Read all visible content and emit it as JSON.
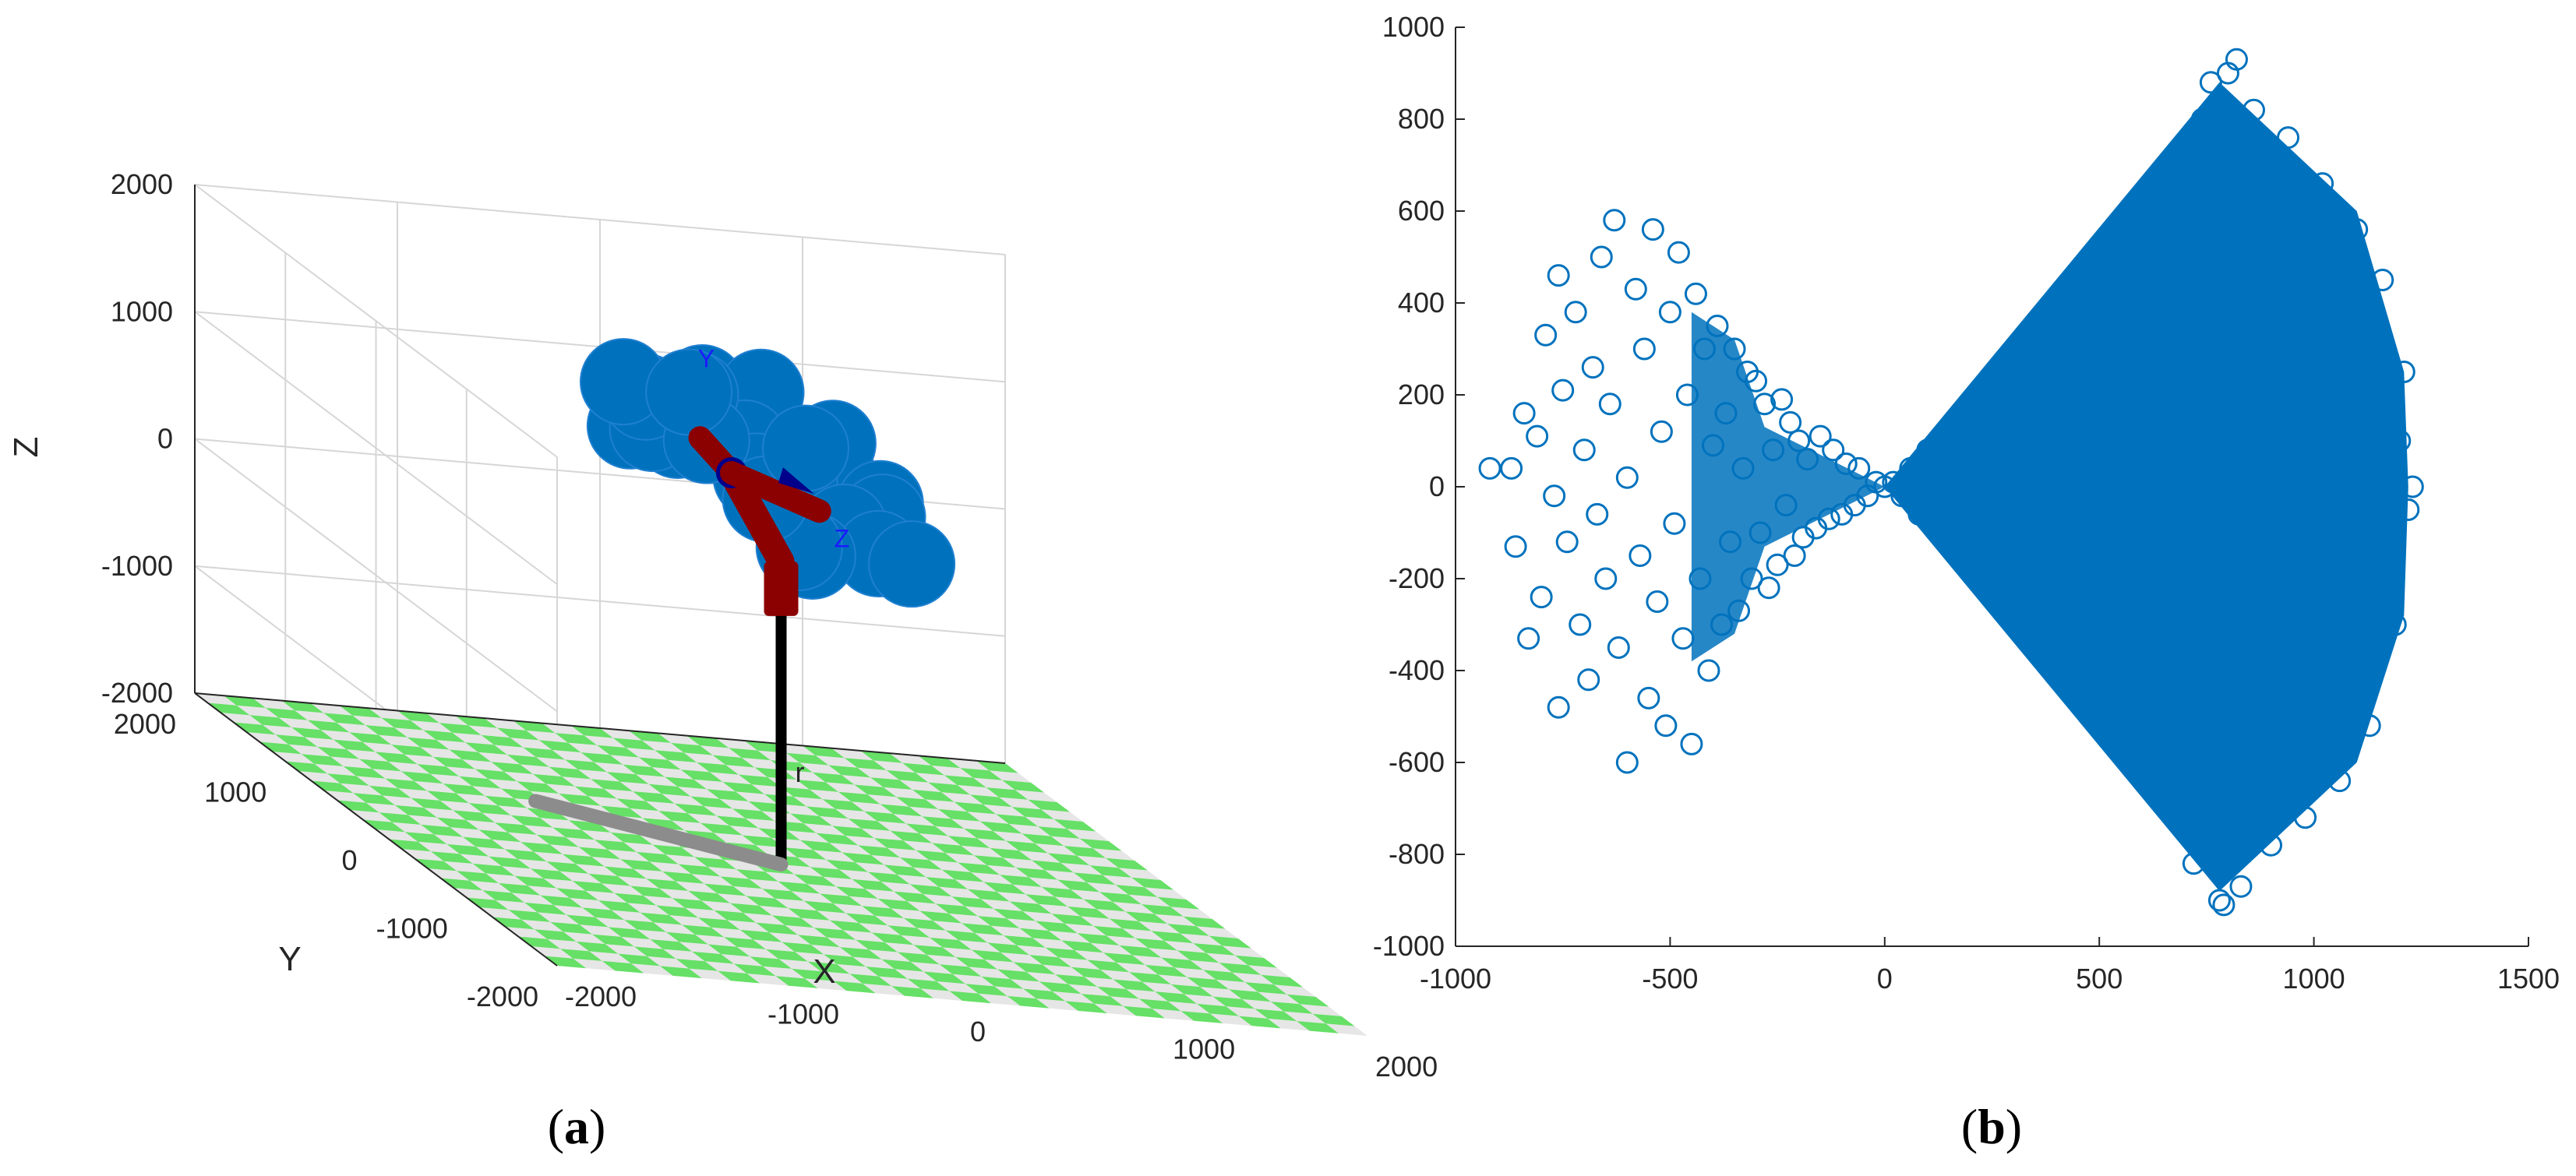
{
  "panels": {
    "a": {
      "caption_open": "(",
      "caption_letter": "a",
      "caption_close": ")"
    },
    "b": {
      "caption_open": "(",
      "caption_letter": "b",
      "caption_close": ")"
    }
  },
  "colors": {
    "marker": "#0072bd",
    "floor_light": "#e6e6e6",
    "floor_green": "#66e066",
    "robot_red": "#8b0000",
    "pole": "#000000"
  },
  "chart_data": [
    {
      "type": "scatter",
      "panel": "a",
      "title": "",
      "dimensions": 3,
      "xlabel": "X",
      "ylabel": "Y",
      "zlabel": "Z",
      "xlim": [
        -2000,
        2000
      ],
      "ylim": [
        -2000,
        2000
      ],
      "zlim": [
        -2000,
        2000
      ],
      "xticks": [
        "-2000",
        "-1000",
        "0",
        "1000",
        "2000"
      ],
      "yticks": [
        "-2000",
        "-1000",
        "0",
        "1000",
        "2000"
      ],
      "zticks": [
        "-2000",
        "-1000",
        "0",
        "1000",
        "2000"
      ],
      "grid": true,
      "marker": "circle",
      "annotations": [
        {
          "text": "Y",
          "position": [
            -500,
            -200,
            1950
          ]
        },
        {
          "text": "Z",
          "position": [
            150,
            -250,
            650
          ]
        },
        {
          "text": "r",
          "position": [
            0,
            0,
            -1350
          ]
        }
      ],
      "series": [
        {
          "points": [
            [
              -600,
              -200,
              1400
            ],
            [
              -400,
              -400,
              1500
            ],
            [
              -200,
              -600,
              1300
            ],
            [
              0,
              -500,
              1500
            ],
            [
              -700,
              100,
              1300
            ],
            [
              -500,
              300,
              1200
            ],
            [
              -300,
              200,
              1600
            ],
            [
              -100,
              0,
              1700
            ],
            [
              100,
              -300,
              1400
            ],
            [
              200,
              -100,
              1200
            ],
            [
              300,
              100,
              1300
            ],
            [
              400,
              -200,
              1000
            ],
            [
              200,
              300,
              900
            ],
            [
              0,
              400,
              1100
            ],
            [
              -200,
              500,
              1400
            ],
            [
              -400,
              600,
              1300
            ],
            [
              500,
              0,
              800
            ],
            [
              400,
              200,
              600
            ],
            [
              300,
              -400,
              700
            ],
            [
              600,
              -100,
              500
            ],
            [
              100,
              500,
              800
            ],
            [
              -100,
              600,
              1000
            ],
            [
              200,
              100,
              400
            ],
            [
              0,
              -200,
              600
            ],
            [
              -300,
              -500,
              1100
            ],
            [
              -600,
              400,
              1500
            ],
            [
              -500,
              -100,
              1700
            ],
            [
              300,
              400,
              1100
            ]
          ]
        }
      ]
    },
    {
      "type": "scatter",
      "panel": "b",
      "title": "",
      "xlabel": "",
      "ylabel": "",
      "xlim": [
        -1000,
        1500
      ],
      "ylim": [
        -1000,
        1000
      ],
      "xticks": [
        -1000,
        -500,
        0,
        500,
        1000,
        1500
      ],
      "yticks": [
        -1000,
        -800,
        -600,
        -400,
        -200,
        0,
        200,
        400,
        600,
        800,
        1000
      ],
      "grid": false,
      "marker": "circle",
      "series": [
        {
          "points": [
            [
              -920,
              40
            ],
            [
              -870,
              40
            ],
            [
              -860,
              -130
            ],
            [
              -840,
              160
            ],
            [
              -830,
              -330
            ],
            [
              -810,
              110
            ],
            [
              -800,
              -240
            ],
            [
              -790,
              330
            ],
            [
              -770,
              -20
            ],
            [
              -760,
              460
            ],
            [
              -760,
              -480
            ],
            [
              -750,
              210
            ],
            [
              -740,
              -120
            ],
            [
              -720,
              380
            ],
            [
              -710,
              -300
            ],
            [
              -700,
              80
            ],
            [
              -690,
              -420
            ],
            [
              -680,
              260
            ],
            [
              -670,
              -60
            ],
            [
              -660,
              500
            ],
            [
              -650,
              -200
            ],
            [
              -640,
              180
            ],
            [
              -630,
              580
            ],
            [
              -620,
              -350
            ],
            [
              -600,
              -600
            ],
            [
              -600,
              20
            ],
            [
              -580,
              430
            ],
            [
              -570,
              -150
            ],
            [
              -560,
              300
            ],
            [
              -550,
              -460
            ],
            [
              -540,
              560
            ],
            [
              -530,
              -250
            ],
            [
              -520,
              120
            ],
            [
              -510,
              -520
            ],
            [
              -500,
              380
            ],
            [
              -490,
              -80
            ],
            [
              -480,
              510
            ],
            [
              -470,
              -330
            ],
            [
              -460,
              200
            ],
            [
              -450,
              -560
            ],
            [
              -440,
              420
            ],
            [
              -430,
              -200
            ],
            [
              -420,
              300
            ],
            [
              -410,
              -400
            ],
            [
              -400,
              90
            ],
            [
              -390,
              350
            ],
            [
              -380,
              -300
            ],
            [
              -370,
              160
            ],
            [
              -360,
              -120
            ],
            [
              -350,
              300
            ],
            [
              -340,
              -270
            ],
            [
              -330,
              40
            ],
            [
              -320,
              250
            ],
            [
              -310,
              -200
            ],
            [
              -300,
              230
            ],
            [
              -290,
              -100
            ],
            [
              -280,
              180
            ],
            [
              -270,
              -220
            ],
            [
              -260,
              80
            ],
            [
              -250,
              -170
            ],
            [
              -240,
              190
            ],
            [
              -230,
              -40
            ],
            [
              -220,
              140
            ],
            [
              -210,
              -150
            ],
            [
              -200,
              100
            ],
            [
              -190,
              -110
            ],
            [
              -180,
              60
            ],
            [
              -160,
              -90
            ],
            [
              -150,
              110
            ],
            [
              -130,
              -70
            ],
            [
              -120,
              80
            ],
            [
              -100,
              -60
            ],
            [
              -90,
              50
            ],
            [
              -70,
              -40
            ],
            [
              -60,
              40
            ],
            [
              -40,
              -20
            ],
            [
              -20,
              10
            ],
            [
              0,
              0
            ],
            [
              20,
              10
            ],
            [
              40,
              -20
            ],
            [
              60,
              40
            ],
            [
              80,
              -60
            ],
            [
              100,
              80
            ],
            [
              120,
              -90
            ],
            [
              140,
              110
            ],
            [
              160,
              -120
            ],
            [
              180,
              150
            ],
            [
              200,
              -170
            ],
            [
              220,
              190
            ],
            [
              240,
              -200
            ],
            [
              260,
              230
            ],
            [
              280,
              -250
            ],
            [
              300,
              270
            ],
            [
              320,
              -280
            ],
            [
              340,
              300
            ],
            [
              360,
              -320
            ],
            [
              380,
              340
            ],
            [
              400,
              -350
            ],
            [
              420,
              370
            ],
            [
              440,
              -380
            ],
            [
              460,
              400
            ],
            [
              480,
              -420
            ],
            [
              500,
              430
            ],
            [
              520,
              -450
            ],
            [
              540,
              470
            ],
            [
              560,
              -480
            ],
            [
              580,
              500
            ],
            [
              600,
              -520
            ],
            [
              620,
              540
            ],
            [
              640,
              -550
            ],
            [
              660,
              570
            ],
            [
              680,
              -590
            ],
            [
              700,
              610
            ],
            [
              720,
              -620
            ],
            [
              740,
              640
            ],
            [
              760,
              -660
            ],
            [
              780,
              680
            ],
            [
              800,
              -690
            ],
            [
              500,
              100
            ],
            [
              550,
              -150
            ],
            [
              600,
              250
            ],
            [
              650,
              -300
            ],
            [
              700,
              50
            ],
            [
              750,
              -200
            ],
            [
              800,
              350
            ],
            [
              850,
              -400
            ],
            [
              900,
              150
            ],
            [
              950,
              -250
            ],
            [
              1000,
              300
            ],
            [
              1050,
              -100
            ],
            [
              1100,
              200
            ],
            [
              1150,
              -350
            ],
            [
              1200,
              100
            ],
            [
              1220,
              -50
            ],
            [
              1230,
              0
            ],
            [
              1210,
              250
            ],
            [
              1190,
              -300
            ],
            [
              1160,
              450
            ],
            [
              1130,
              -520
            ],
            [
              1100,
              560
            ],
            [
              1060,
              -640
            ],
            [
              1020,
              660
            ],
            [
              980,
              -720
            ],
            [
              940,
              760
            ],
            [
              900,
              -780
            ],
            [
              860,
              820
            ],
            [
              830,
              -870
            ],
            [
              800,
              900
            ],
            [
              780,
              -900
            ],
            [
              760,
              880
            ],
            [
              820,
              930
            ],
            [
              790,
              -910
            ],
            [
              740,
              800
            ],
            [
              720,
              -820
            ],
            [
              880,
              700
            ],
            [
              880,
              -700
            ],
            [
              950,
              600
            ],
            [
              950,
              -600
            ],
            [
              1000,
              500
            ],
            [
              1000,
              -500
            ],
            [
              1080,
              400
            ],
            [
              1080,
              -420
            ],
            [
              1150,
              300
            ],
            [
              1150,
              -250
            ],
            [
              650,
              450
            ],
            [
              650,
              -500
            ],
            [
              300,
              50
            ],
            [
              350,
              -100
            ],
            [
              400,
              200
            ],
            [
              450,
              -250
            ],
            [
              250,
              120
            ],
            [
              250,
              -150
            ],
            [
              150,
              60
            ],
            [
              150,
              -50
            ],
            [
              900,
              0
            ],
            [
              950,
              50
            ],
            [
              1050,
              0
            ],
            [
              1100,
              -50
            ],
            [
              850,
              100
            ],
            [
              700,
              -100
            ]
          ]
        }
      ]
    }
  ]
}
